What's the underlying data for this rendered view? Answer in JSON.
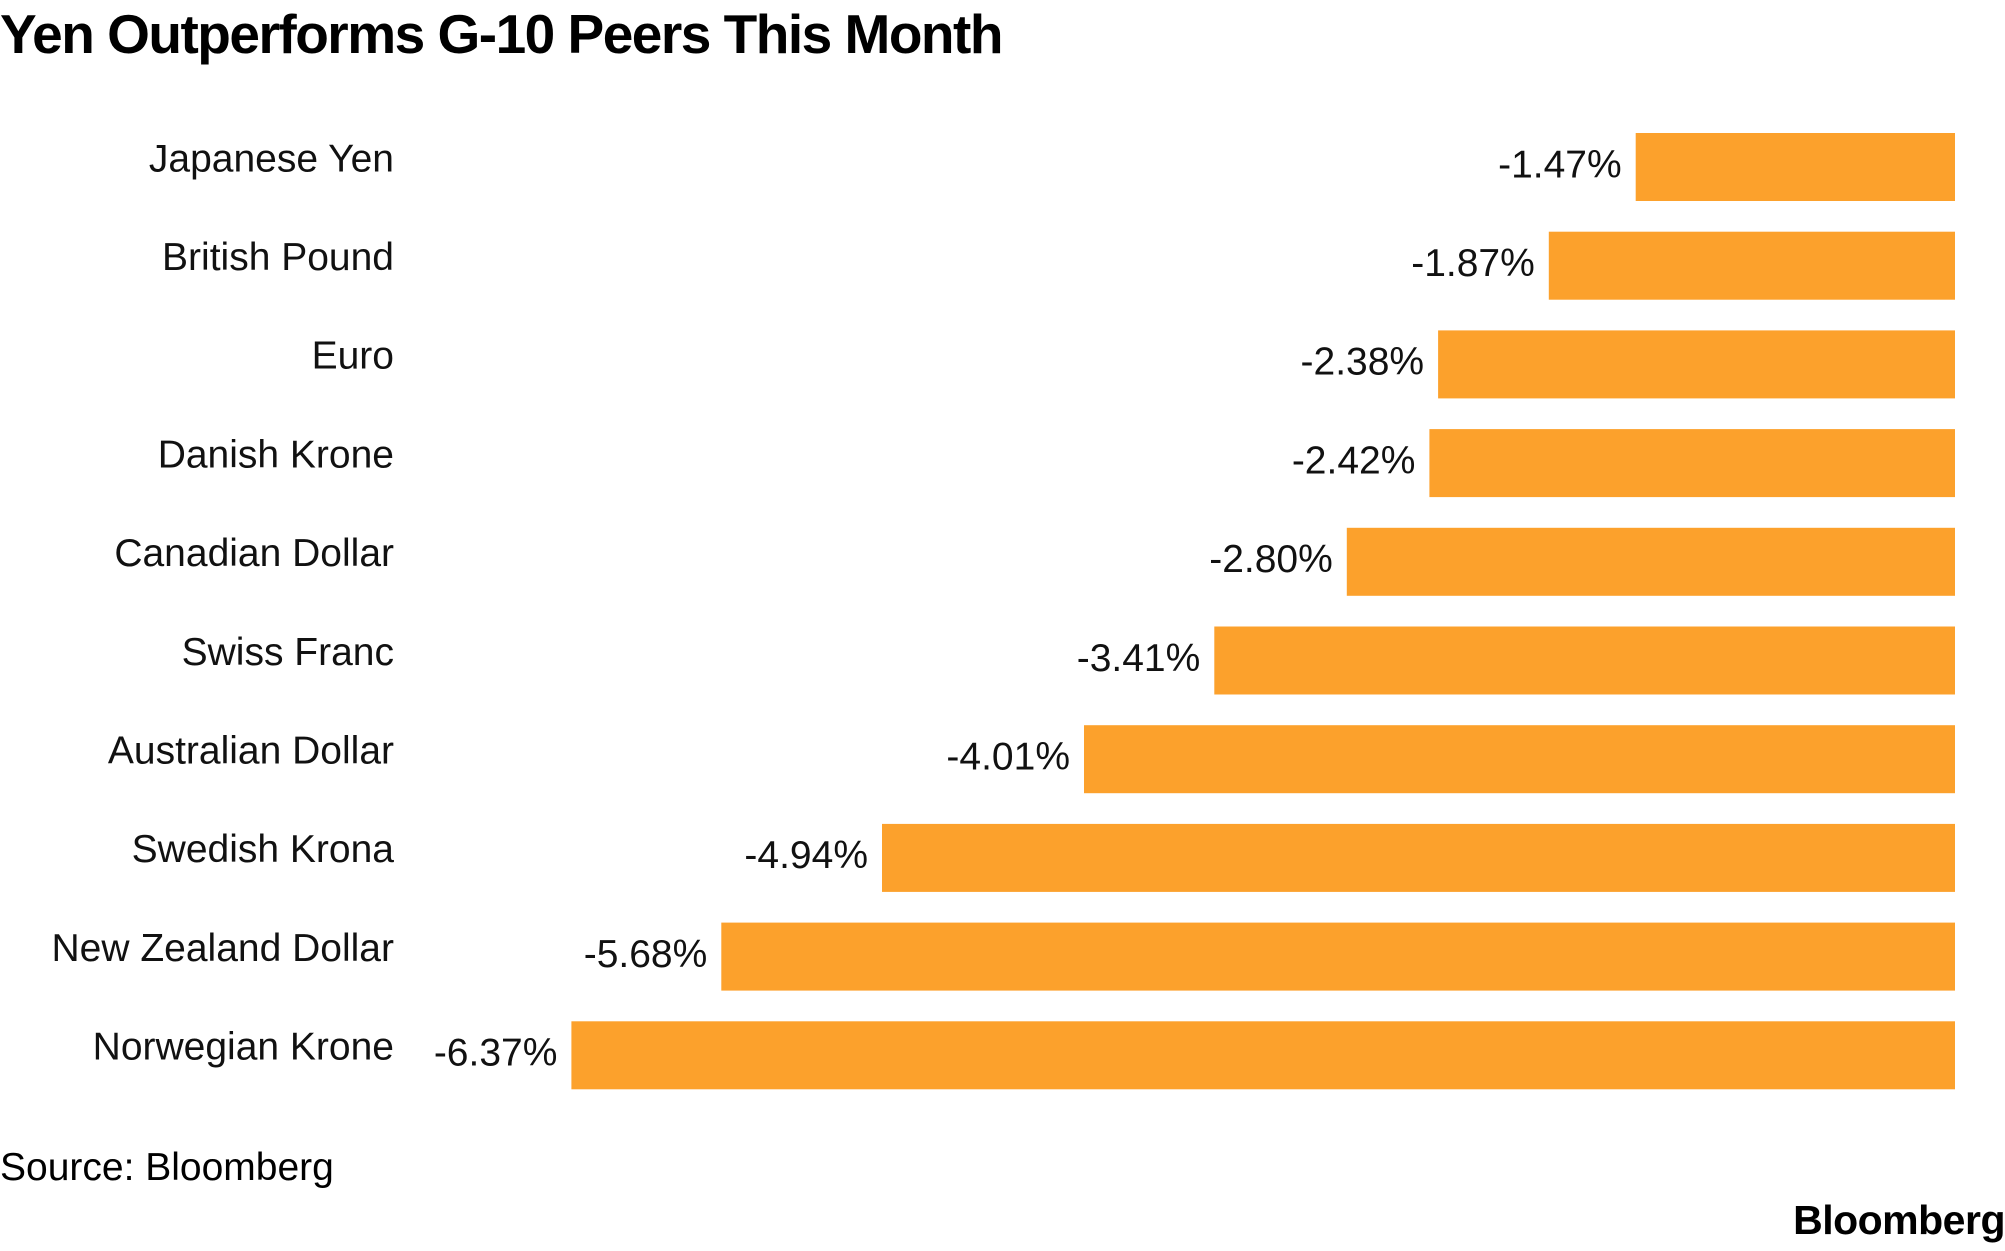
{
  "chart_data": {
    "type": "bar",
    "orientation": "horizontal",
    "title": "Yen Outperforms G-10 Peers This Month",
    "categories": [
      "Japanese Yen",
      "British Pound",
      "Euro",
      "Danish Krone",
      "Canadian Dollar",
      "Swiss Franc",
      "Australian Dollar",
      "Swedish Krona",
      "New Zealand Dollar",
      "Norwegian Krone"
    ],
    "values": [
      -1.47,
      -1.87,
      -2.38,
      -2.42,
      -2.8,
      -3.41,
      -4.01,
      -4.94,
      -5.68,
      -6.37
    ],
    "value_labels": [
      "-1.47%",
      "-1.87%",
      "-2.38%",
      "-2.42%",
      "-2.80%",
      "-3.41%",
      "-4.01%",
      "-4.94%",
      "-5.68%",
      "-6.37%"
    ],
    "bar_color": "#FCA12C",
    "grid": false,
    "legend": "none"
  },
  "source": "Source: Bloomberg",
  "brand": "Bloomberg"
}
